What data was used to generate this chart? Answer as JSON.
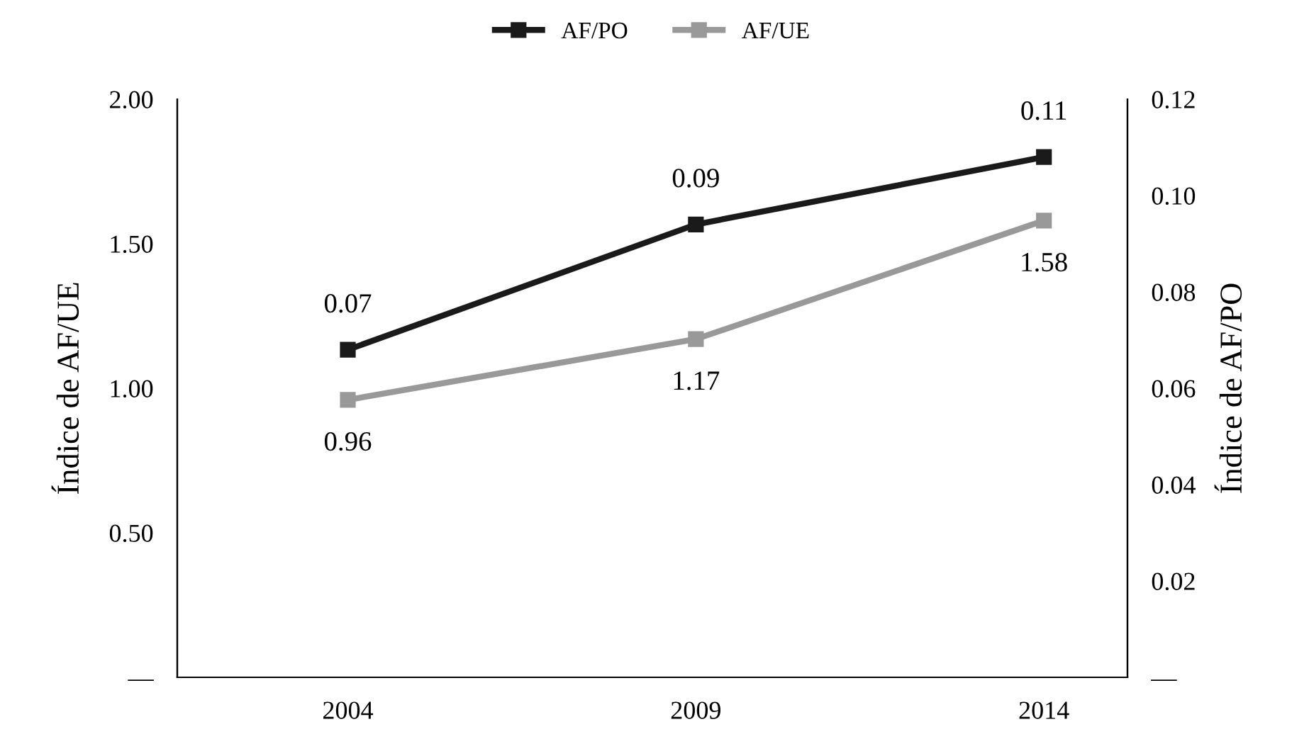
{
  "chart_data": {
    "type": "line",
    "categories": [
      "2004",
      "2009",
      "2014"
    ],
    "ylabel": "Índice de AF/UE",
    "y2label": "Índice de AF/PO",
    "ylim": [
      0,
      2.0
    ],
    "yticks": [
      {
        "value": 0,
        "label": "—"
      },
      {
        "value": 0.5,
        "label": "0.50"
      },
      {
        "value": 1.0,
        "label": "1.00"
      },
      {
        "value": 1.5,
        "label": "1.50"
      },
      {
        "value": 2.0,
        "label": "2.00"
      }
    ],
    "y2lim": [
      0,
      0.12
    ],
    "y2ticks": [
      {
        "value": 0,
        "label": "—"
      },
      {
        "value": 0.02,
        "label": "0.02"
      },
      {
        "value": 0.04,
        "label": "0.04"
      },
      {
        "value": 0.06,
        "label": "0.06"
      },
      {
        "value": 0.08,
        "label": "0.08"
      },
      {
        "value": 0.1,
        "label": "0.10"
      },
      {
        "value": 0.12,
        "label": "0.12"
      }
    ],
    "series": [
      {
        "name": "AF/PO",
        "color": "#1a1a1a",
        "axis": "y2",
        "values": [
          0.068,
          0.094,
          0.108
        ],
        "value_labels": [
          "0.07",
          "0.09",
          "0.11"
        ]
      },
      {
        "name": "AF/UE",
        "color": "#999999",
        "values": [
          0.96,
          1.17,
          1.58
        ],
        "value_labels": [
          "0.96",
          "1.17",
          "1.58"
        ]
      }
    ],
    "marker": "square",
    "line_style": "solid",
    "legend": "top",
    "grid": false
  }
}
